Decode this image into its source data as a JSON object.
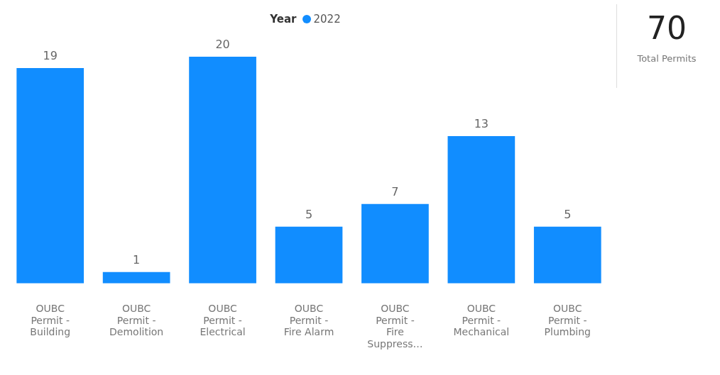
{
  "chart_data": [
    {
      "type": "bar",
      "legend_title": "Year",
      "legend": "top",
      "data_labels": true,
      "grid": false,
      "categories": [
        "OUBC Permit - Building",
        "OUBC Permit - Demolition",
        "OUBC Permit - Electrical",
        "OUBC Permit - Fire Alarm",
        "OUBC Permit - Fire Suppress…",
        "OUBC Permit - Mechanical",
        "OUBC Permit - Plumbing"
      ],
      "series": [
        {
          "name": "2022",
          "color": "#118dff",
          "values": [
            19,
            1,
            20,
            5,
            7,
            13,
            5
          ]
        }
      ]
    },
    {
      "type": "other",
      "title": "70",
      "subtitle": "Total Permits"
    }
  ]
}
